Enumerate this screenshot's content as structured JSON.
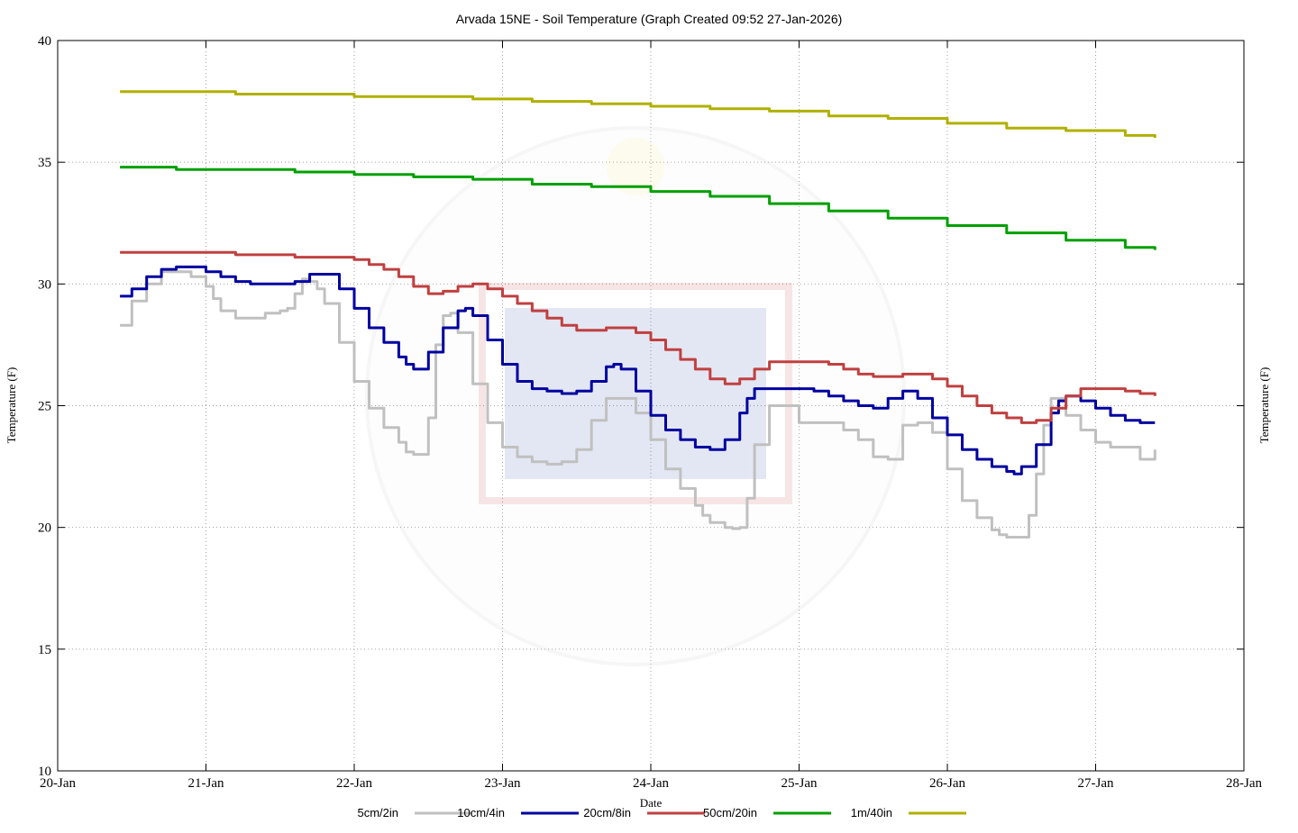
{
  "chart_data": {
    "type": "line",
    "title": "Arvada 15NE - Soil Temperature (Graph Created 09:52 27-Jan-2026)",
    "xlabel": "Date",
    "ylabel": "Temperature (F)",
    "ylabel_right": "Temperature (F)",
    "xlim": [
      20,
      28
    ],
    "ylim": [
      10,
      40
    ],
    "grid": true,
    "legend_position": "bottom",
    "x_ticks": [
      {
        "value": 20,
        "label": "20-Jan"
      },
      {
        "value": 21,
        "label": "21-Jan"
      },
      {
        "value": 22,
        "label": "22-Jan"
      },
      {
        "value": 23,
        "label": "23-Jan"
      },
      {
        "value": 24,
        "label": "24-Jan"
      },
      {
        "value": 25,
        "label": "25-Jan"
      },
      {
        "value": 26,
        "label": "26-Jan"
      },
      {
        "value": 27,
        "label": "27-Jan"
      },
      {
        "value": 28,
        "label": "28-Jan"
      }
    ],
    "y_ticks": [
      {
        "value": 10,
        "label": "10"
      },
      {
        "value": 15,
        "label": "15"
      },
      {
        "value": 20,
        "label": "20"
      },
      {
        "value": 25,
        "label": "25"
      },
      {
        "value": 30,
        "label": "30"
      },
      {
        "value": 35,
        "label": "35"
      },
      {
        "value": 40,
        "label": "40"
      }
    ],
    "series": [
      {
        "name": "5cm/2in",
        "color": "#c0c0c0",
        "x": [
          20.42,
          20.5,
          20.6,
          20.7,
          20.8,
          20.9,
          21.0,
          21.05,
          21.1,
          21.2,
          21.3,
          21.4,
          21.5,
          21.55,
          21.6,
          21.65,
          21.7,
          21.75,
          21.8,
          21.9,
          22.0,
          22.1,
          22.2,
          22.3,
          22.35,
          22.4,
          22.5,
          22.55,
          22.6,
          22.65,
          22.7,
          22.8,
          22.9,
          23.0,
          23.1,
          23.2,
          23.3,
          23.4,
          23.5,
          23.6,
          23.7,
          23.8,
          23.9,
          24.0,
          24.1,
          24.2,
          24.3,
          24.35,
          24.4,
          24.5,
          24.55,
          24.6,
          24.65,
          24.7,
          24.8,
          25.0,
          25.1,
          25.2,
          25.3,
          25.4,
          25.5,
          25.6,
          25.7,
          25.8,
          25.9,
          26.0,
          26.1,
          26.2,
          26.3,
          26.35,
          26.4,
          26.5,
          26.55,
          26.6,
          26.65,
          26.7,
          26.8,
          26.9,
          27.0,
          27.1,
          27.2,
          27.3,
          27.4
        ],
        "y": [
          28.3,
          29.3,
          30.0,
          30.5,
          30.5,
          30.3,
          29.9,
          29.4,
          28.9,
          28.6,
          28.6,
          28.8,
          28.9,
          29.0,
          29.6,
          30.2,
          30.1,
          29.8,
          29.2,
          27.6,
          26.0,
          24.9,
          24.1,
          23.5,
          23.1,
          23.0,
          24.5,
          27.5,
          28.7,
          28.8,
          28.0,
          25.9,
          24.3,
          23.3,
          22.9,
          22.7,
          22.6,
          22.7,
          23.2,
          24.4,
          25.3,
          25.3,
          24.7,
          23.6,
          22.4,
          21.6,
          20.9,
          20.5,
          20.2,
          20.0,
          19.95,
          20.0,
          21.2,
          23.4,
          25.0,
          24.3,
          24.3,
          24.3,
          24.0,
          23.6,
          22.9,
          22.8,
          24.2,
          24.3,
          23.9,
          22.4,
          21.1,
          20.4,
          19.9,
          19.7,
          19.6,
          19.6,
          20.5,
          22.2,
          24.2,
          25.3,
          24.6,
          24.0,
          23.5,
          23.3,
          23.3,
          22.8,
          23.2
        ]
      },
      {
        "name": "10cm/4in",
        "color": "#0000a0",
        "x": [
          20.42,
          20.5,
          20.6,
          20.7,
          20.8,
          20.9,
          21.0,
          21.1,
          21.2,
          21.3,
          21.4,
          21.5,
          21.6,
          21.7,
          21.8,
          21.9,
          22.0,
          22.1,
          22.2,
          22.3,
          22.35,
          22.4,
          22.5,
          22.6,
          22.7,
          22.75,
          22.8,
          22.9,
          23.0,
          23.1,
          23.2,
          23.3,
          23.4,
          23.5,
          23.6,
          23.7,
          23.75,
          23.8,
          23.9,
          24.0,
          24.1,
          24.2,
          24.3,
          24.4,
          24.5,
          24.6,
          24.65,
          24.7,
          24.8,
          25.0,
          25.1,
          25.2,
          25.3,
          25.4,
          25.5,
          25.6,
          25.7,
          25.8,
          25.9,
          26.0,
          26.1,
          26.2,
          26.3,
          26.4,
          26.45,
          26.5,
          26.6,
          26.7,
          26.75,
          26.8,
          26.9,
          27.0,
          27.1,
          27.2,
          27.3,
          27.4
        ],
        "y": [
          29.5,
          29.8,
          30.3,
          30.6,
          30.7,
          30.7,
          30.5,
          30.3,
          30.1,
          30.0,
          30.0,
          30.0,
          30.1,
          30.4,
          30.4,
          29.8,
          29.0,
          28.2,
          27.6,
          27.0,
          26.7,
          26.5,
          27.2,
          28.2,
          28.9,
          29.0,
          28.7,
          27.7,
          26.7,
          26.0,
          25.7,
          25.6,
          25.5,
          25.6,
          26.0,
          26.6,
          26.7,
          26.5,
          25.6,
          24.6,
          24.0,
          23.6,
          23.3,
          23.2,
          23.6,
          24.7,
          25.3,
          25.7,
          25.7,
          25.7,
          25.6,
          25.4,
          25.2,
          25.0,
          24.9,
          25.3,
          25.6,
          25.3,
          24.5,
          23.8,
          23.2,
          22.8,
          22.5,
          22.3,
          22.2,
          22.5,
          23.4,
          24.7,
          25.2,
          25.4,
          25.2,
          24.9,
          24.6,
          24.4,
          24.3,
          24.3
        ]
      },
      {
        "name": "20cm/8in",
        "color": "#c04040",
        "x": [
          20.42,
          20.6,
          20.8,
          21.0,
          21.2,
          21.4,
          21.6,
          21.8,
          22.0,
          22.1,
          22.2,
          22.3,
          22.4,
          22.5,
          22.6,
          22.7,
          22.8,
          22.9,
          23.0,
          23.1,
          23.2,
          23.3,
          23.4,
          23.5,
          23.6,
          23.7,
          23.8,
          23.9,
          24.0,
          24.1,
          24.2,
          24.3,
          24.4,
          24.5,
          24.6,
          24.7,
          24.8,
          24.9,
          25.0,
          25.1,
          25.2,
          25.3,
          25.4,
          25.5,
          25.6,
          25.7,
          25.8,
          25.9,
          26.0,
          26.1,
          26.2,
          26.3,
          26.4,
          26.5,
          26.6,
          26.7,
          26.8,
          26.9,
          27.0,
          27.1,
          27.2,
          27.3,
          27.4
        ],
        "y": [
          31.3,
          31.3,
          31.3,
          31.3,
          31.2,
          31.2,
          31.1,
          31.1,
          31.0,
          30.8,
          30.6,
          30.3,
          29.9,
          29.6,
          29.7,
          29.9,
          30.0,
          29.8,
          29.5,
          29.2,
          28.9,
          28.6,
          28.3,
          28.1,
          28.1,
          28.2,
          28.2,
          28.0,
          27.7,
          27.3,
          26.9,
          26.5,
          26.1,
          25.9,
          26.1,
          26.5,
          26.8,
          26.8,
          26.8,
          26.8,
          26.7,
          26.5,
          26.3,
          26.2,
          26.2,
          26.3,
          26.3,
          26.1,
          25.8,
          25.4,
          25.0,
          24.7,
          24.5,
          24.3,
          24.4,
          24.9,
          25.4,
          25.7,
          25.7,
          25.7,
          25.6,
          25.5,
          25.4
        ]
      },
      {
        "name": "50cm/20in",
        "color": "#00a000",
        "x": [
          20.42,
          20.8,
          21.2,
          21.6,
          22.0,
          22.4,
          22.8,
          23.2,
          23.6,
          24.0,
          24.4,
          24.8,
          25.2,
          25.6,
          26.0,
          26.4,
          26.8,
          27.2,
          27.4
        ],
        "y": [
          34.8,
          34.7,
          34.7,
          34.6,
          34.5,
          34.4,
          34.3,
          34.1,
          34.0,
          33.8,
          33.6,
          33.3,
          33.0,
          32.7,
          32.4,
          32.1,
          31.8,
          31.5,
          31.4
        ]
      },
      {
        "name": "1m/40in",
        "color": "#b0b000",
        "x": [
          20.42,
          20.8,
          21.2,
          21.6,
          22.0,
          22.4,
          22.8,
          23.2,
          23.6,
          24.0,
          24.4,
          24.8,
          25.2,
          25.6,
          26.0,
          26.4,
          26.8,
          27.2,
          27.4
        ],
        "y": [
          37.9,
          37.9,
          37.8,
          37.8,
          37.7,
          37.7,
          37.6,
          37.5,
          37.4,
          37.3,
          37.2,
          37.1,
          36.9,
          36.8,
          36.6,
          36.4,
          36.3,
          36.1,
          36.0
        ]
      }
    ]
  }
}
